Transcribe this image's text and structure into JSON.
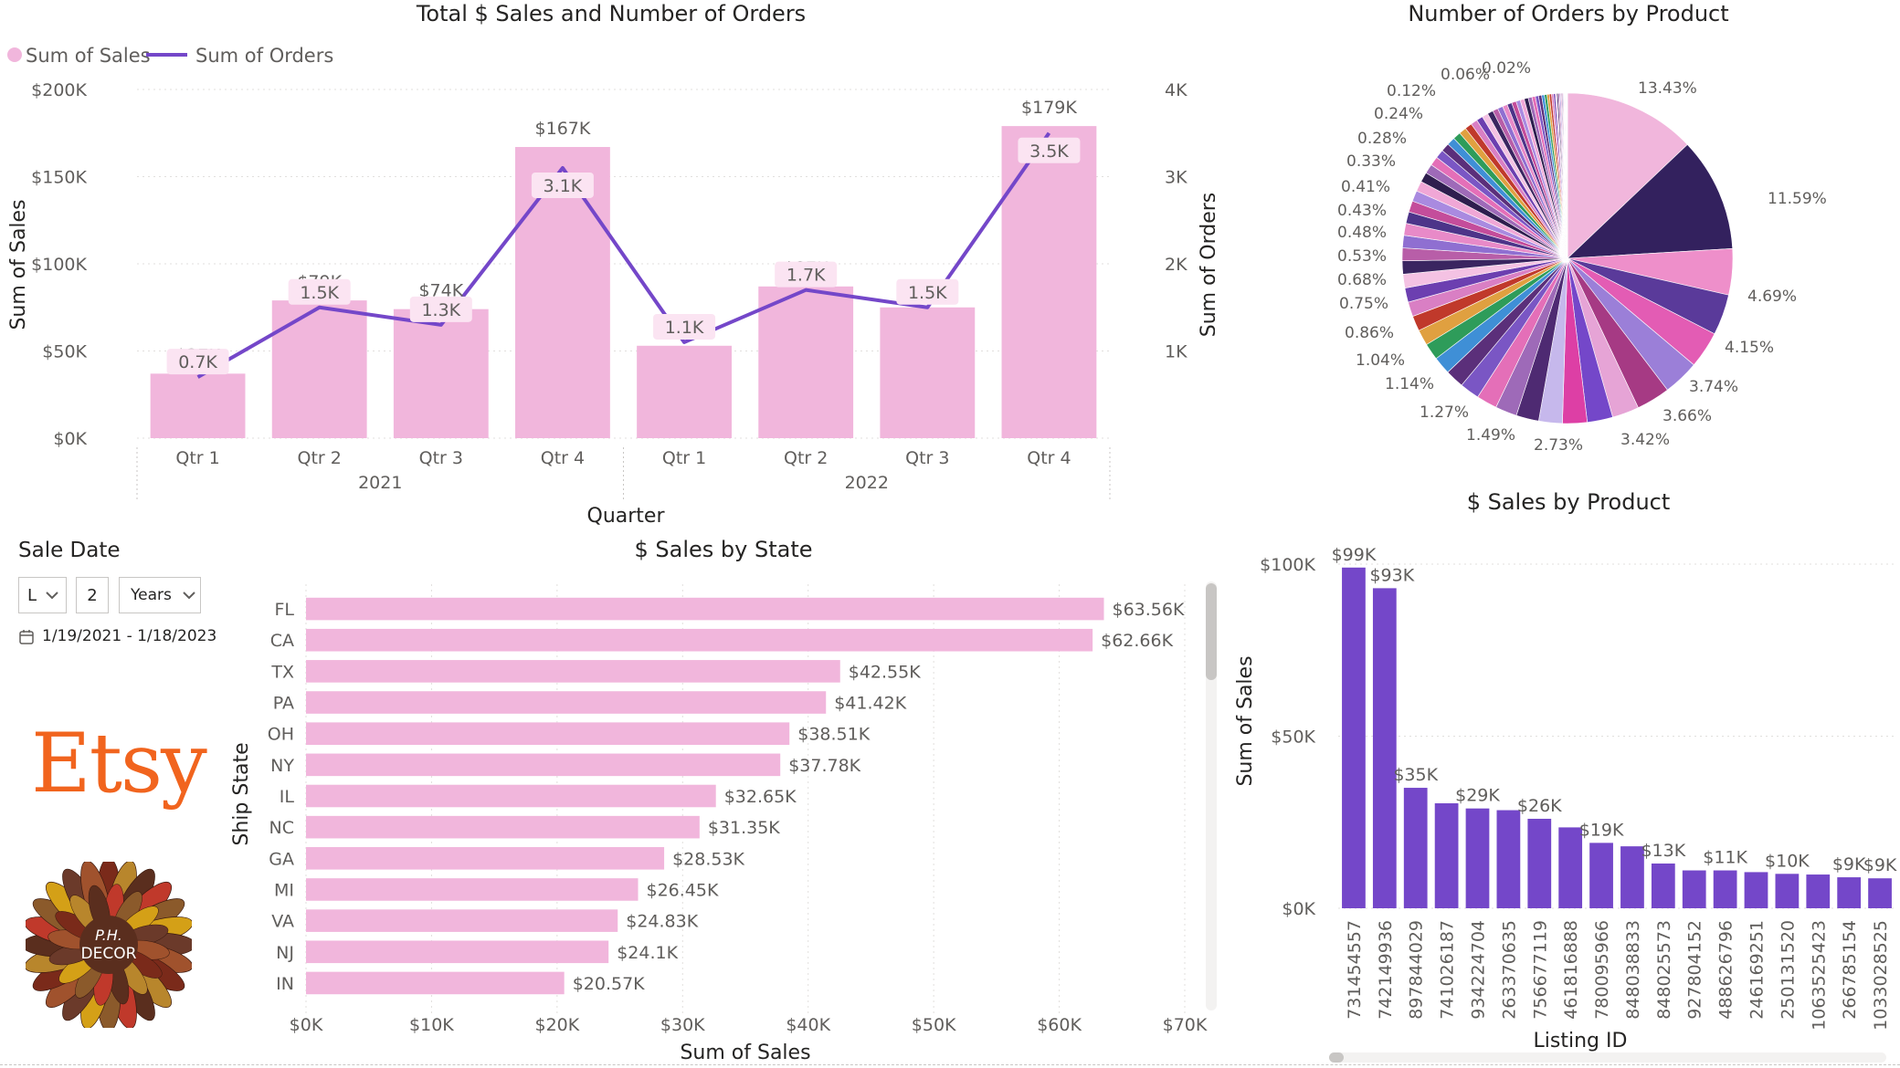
{
  "colors": {
    "pink_bar": "#f1b6dc",
    "purple_line": "#7447c9",
    "purple_bar": "#7447c9",
    "label_bg": "#fbe4f2",
    "etsy_orange": "#f1641e"
  },
  "slicer": {
    "title": "Sale Date",
    "mode_value": "L",
    "count_value": "2",
    "unit_value": "Years",
    "date_range": "1/19/2021 - 1/18/2023",
    "calendar_icon": "calendar-icon",
    "chevron_icon": "chevron-down-icon"
  },
  "branding": {
    "etsy_logo_text": "Etsy",
    "shop_logo_text": "P.H. DECOR"
  },
  "chart_data": [
    {
      "id": "sales_orders",
      "type": "bar",
      "title": "Total $ Sales and Number of Orders",
      "legend": [
        "Sum of Sales",
        "Sum of Orders"
      ],
      "legend_position": "top-left",
      "categories": [
        "Qtr 1",
        "Qtr 2",
        "Qtr 3",
        "Qtr 4",
        "Qtr 1",
        "Qtr 2",
        "Qtr 3",
        "Qtr 4"
      ],
      "years": [
        "2021",
        "2022"
      ],
      "xlabel": "Quarter",
      "ylabel": "Sum of Sales",
      "y2label": "Sum of Orders",
      "ylim": [
        0,
        200000
      ],
      "y2lim": [
        0,
        4000
      ],
      "yticks": [
        "$0K",
        "$50K",
        "$100K",
        "$150K",
        "$200K"
      ],
      "y2ticks": [
        "1K",
        "2K",
        "3K",
        "4K"
      ],
      "series": [
        {
          "name": "Sum of Sales",
          "type": "bar",
          "values": [
            37000,
            79000,
            74000,
            167000,
            53000,
            87000,
            75000,
            179000
          ],
          "labels": [
            "$37K",
            "$79K",
            "$74K",
            "$167K",
            "$53K",
            "$87K",
            "$75K",
            "$179K"
          ]
        },
        {
          "name": "Sum of Orders",
          "type": "line",
          "values": [
            700,
            1500,
            1300,
            3100,
            1100,
            1700,
            1500,
            3500
          ],
          "labels": [
            "0.7K",
            "1.5K",
            "1.3K",
            "3.1K",
            "1.1K",
            "1.7K",
            "1.5K",
            "3.5K"
          ]
        }
      ]
    },
    {
      "id": "orders_by_product",
      "type": "pie",
      "title": "Number of Orders by Product",
      "labeled_slices": [
        "13.43%",
        "11.59%",
        "4.69%",
        "4.15%",
        "3.74%",
        "3.66%",
        "3.42%",
        "2.73%",
        "1.49%",
        "1.27%",
        "1.14%",
        "1.04%",
        "0.86%",
        "0.75%",
        "0.68%",
        "0.53%",
        "0.48%",
        "0.43%",
        "0.41%",
        "0.33%",
        "0.28%",
        "0.24%",
        "0.12%",
        "0.06%",
        "0.02%"
      ],
      "values": [
        13.43,
        11.59,
        4.69,
        4.15,
        3.74,
        3.66,
        3.42,
        2.73,
        2.6,
        2.5,
        2.4,
        2.3,
        2.2,
        2.1,
        2.0,
        1.9,
        1.8,
        1.7,
        1.6,
        1.55,
        1.49,
        1.45,
        1.4,
        1.35,
        1.3,
        1.27,
        1.22,
        1.18,
        1.14,
        1.1,
        1.04,
        1.0,
        0.96,
        0.92,
        0.89,
        0.86,
        0.82,
        0.79,
        0.75,
        0.72,
        0.68,
        0.65,
        0.62,
        0.58,
        0.55,
        0.53,
        0.5,
        0.48,
        0.46,
        0.43,
        0.42,
        0.41,
        0.38,
        0.35,
        0.33,
        0.31,
        0.28,
        0.26,
        0.24,
        0.22,
        0.2,
        0.18,
        0.16,
        0.14,
        0.12,
        0.11,
        0.1,
        0.09,
        0.08,
        0.07,
        0.06,
        0.05,
        0.05,
        0.04,
        0.04,
        0.03,
        0.03,
        0.02,
        0.02,
        0.02
      ]
    },
    {
      "id": "sales_by_state",
      "type": "bar",
      "orientation": "horizontal",
      "title": "$ Sales by State",
      "xlabel": "Sum of Sales",
      "ylabel": "Ship State",
      "xlim": [
        0,
        70000
      ],
      "xticks": [
        "$0K",
        "$10K",
        "$20K",
        "$30K",
        "$40K",
        "$50K",
        "$60K",
        "$70K"
      ],
      "categories": [
        "FL",
        "CA",
        "TX",
        "PA",
        "OH",
        "NY",
        "IL",
        "NC",
        "GA",
        "MI",
        "VA",
        "NJ",
        "IN"
      ],
      "values": [
        63560,
        62660,
        42550,
        41420,
        38510,
        37780,
        32650,
        31350,
        28530,
        26450,
        24830,
        24100,
        20570
      ],
      "labels": [
        "$63.56K",
        "$62.66K",
        "$42.55K",
        "$41.42K",
        "$38.51K",
        "$37.78K",
        "$32.65K",
        "$31.35K",
        "$28.53K",
        "$26.45K",
        "$24.83K",
        "$24.1K",
        "$20.57K"
      ]
    },
    {
      "id": "sales_by_product",
      "type": "bar",
      "title": "$ Sales by Product",
      "xlabel": "Listing ID",
      "ylabel": "Sum of Sales",
      "ylim": [
        0,
        100000
      ],
      "yticks": [
        "$0K",
        "$50K",
        "$100K"
      ],
      "categories": [
        "731454557",
        "742149936",
        "897844029",
        "741026187",
        "934224704",
        "263370635",
        "756677119",
        "461816888",
        "780095966",
        "848038833",
        "848025573",
        "927804152",
        "488626796",
        "246169251",
        "250131520",
        "1063525423",
        "266785154",
        "1033028525"
      ],
      "values": [
        99000,
        93000,
        35000,
        30500,
        29000,
        28500,
        26000,
        23500,
        19000,
        18000,
        13000,
        11000,
        11000,
        10500,
        10000,
        9800,
        9000,
        8700
      ],
      "labels": [
        "$99K",
        "$93K",
        "$35K",
        "",
        "$29K",
        "",
        "$26K",
        "",
        "$19K",
        "",
        "$13K",
        "",
        "$11K",
        "",
        "$10K",
        "",
        "$9K",
        "$9K"
      ]
    }
  ]
}
